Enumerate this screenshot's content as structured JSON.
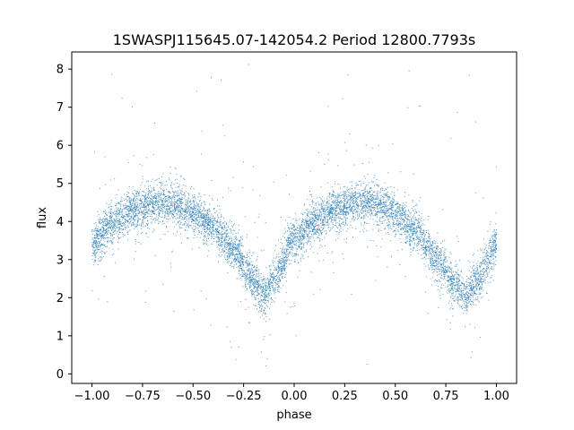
{
  "chart_data": {
    "type": "scatter",
    "title": "1SWASPJ115645.07-142054.2 Period 12800.7793s",
    "xlabel": "phase",
    "ylabel": "flux",
    "xlim": [
      -1.1,
      1.1
    ],
    "ylim": [
      -0.25,
      8.45
    ],
    "x_ticks": [
      -1.0,
      -0.75,
      -0.5,
      -0.25,
      0.0,
      0.25,
      0.5,
      0.75,
      1.0
    ],
    "x_tick_labels": [
      "−1.00",
      "−0.75",
      "−0.50",
      "−0.25",
      "0.00",
      "0.25",
      "0.50",
      "0.75",
      "1.00"
    ],
    "y_ticks": [
      0,
      1,
      2,
      3,
      4,
      5,
      6,
      7,
      8
    ],
    "y_tick_labels": [
      "0",
      "1",
      "2",
      "3",
      "4",
      "5",
      "6",
      "7",
      "8"
    ],
    "grid": false,
    "marker_color": "#1f77b4",
    "x_range": [
      -1.0,
      1.0
    ],
    "trend": {
      "phase": [
        -1.0,
        -0.9,
        -0.8,
        -0.7,
        -0.65,
        -0.6,
        -0.5,
        -0.4,
        -0.3,
        -0.2,
        -0.15,
        -0.1,
        0.0,
        0.1,
        0.2,
        0.3,
        0.35,
        0.4,
        0.5,
        0.6,
        0.7,
        0.8,
        0.85,
        0.9,
        1.0
      ],
      "flux": [
        3.4,
        3.95,
        4.3,
        4.45,
        4.5,
        4.45,
        4.25,
        3.85,
        3.25,
        2.5,
        2.05,
        2.5,
        3.5,
        4.0,
        4.3,
        4.45,
        4.5,
        4.45,
        4.2,
        3.75,
        3.05,
        2.35,
        2.05,
        2.4,
        3.4
      ]
    }
  }
}
